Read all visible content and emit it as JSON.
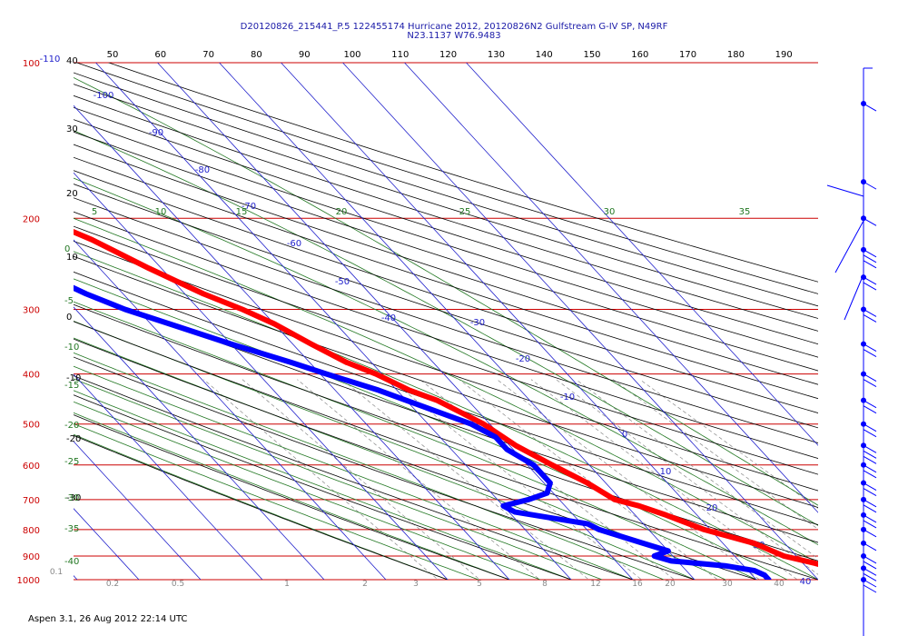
{
  "header": {
    "title_line1": "D20120826_215441_P.5 122455174 Hurricane 2012, 20120826N2 Gulfstream G-IV SP, N49RF",
    "title_line2": "N23.1137 W76.9483"
  },
  "footer": {
    "text": "Aspen 3.1, 26 Aug 2012  22:14 UTC"
  },
  "colors": {
    "isobar": "#cc0000",
    "isotherm": "#2222cc",
    "dry_adiabat": "#000000",
    "moist_adiabat": "#227722",
    "mixing_ratio": "#888888",
    "temperature": "#ff0000",
    "dewpoint": "#0000ff",
    "wind": "#0000ff"
  },
  "chart_data": {
    "type": "skew-t log-p",
    "x_tick_labels": [
      "50",
      "60",
      "70",
      "80",
      "90",
      "100",
      "110",
      "120",
      "130",
      "140",
      "150",
      "160",
      "170",
      "180",
      "190"
    ],
    "pressure_levels": [
      "100",
      "200",
      "300",
      "400",
      "500",
      "600",
      "700",
      "800",
      "900",
      "1000"
    ],
    "isotherm_labels": [
      "-110",
      "-100",
      "-90",
      "-80",
      "-70",
      "-60",
      "-50",
      "-40",
      "-30",
      "-20",
      "-10",
      "0",
      "10",
      "20",
      "30",
      "40"
    ],
    "dry_adiabat_labels": [
      "40",
      "30",
      "20",
      "10",
      "0",
      "-10",
      "-20",
      "-30"
    ],
    "moist_adiabat_labels": [
      "5",
      "10",
      "15",
      "20",
      "25",
      "30",
      "35",
      "0",
      "-5",
      "-10",
      "-15",
      "-20",
      "-25",
      "-30",
      "-35",
      "-40"
    ],
    "mixing_ratio_labels": [
      "0.1",
      "0.2",
      "0.5",
      "1",
      "2",
      "3",
      "5",
      "8",
      "12",
      "16",
      "20",
      "30",
      "40"
    ],
    "temperature": {
      "pressure": [
        178,
        185,
        200,
        220,
        250,
        280,
        300,
        320,
        350,
        380,
        400,
        430,
        450,
        500,
        550,
        600,
        650,
        700,
        720,
        750,
        800,
        850,
        900,
        930,
        960,
        1000
      ],
      "values": [
        -56,
        -55,
        -52,
        -47,
        -42,
        -37,
        -33,
        -30,
        -27,
        -24,
        -21,
        -18,
        -15,
        -11,
        -9,
        -6,
        -3,
        -1,
        2,
        5,
        9,
        15,
        18,
        22,
        25,
        27
      ]
    },
    "temperature_top_point": {
      "pressure": 166,
      "value": -61
    },
    "dewpoint": {
      "pressure": [
        197,
        210,
        230,
        250,
        280,
        300,
        320,
        350,
        380,
        400,
        430,
        450,
        500,
        530,
        560,
        600,
        650,
        680,
        700,
        720,
        740,
        780,
        800,
        850,
        880,
        900,
        920,
        940,
        960,
        980,
        1000
      ],
      "values": [
        -70,
        -67,
        -64,
        -61,
        -56,
        -52,
        -47,
        -40,
        -33,
        -29,
        -23,
        -20,
        -13,
        -11,
        -11,
        -9,
        -9,
        -11,
        -15,
        -20,
        -19,
        -9,
        -8,
        -3,
        0,
        -3,
        -1,
        7,
        11,
        12,
        12
      ]
    },
    "wind_barbs": {
      "pressure": [
        120,
        170,
        200,
        230,
        260,
        300,
        350,
        400,
        450,
        500,
        550,
        600,
        650,
        700,
        750,
        800,
        850,
        900,
        950,
        1000
      ],
      "speed_kt": [
        5,
        10,
        10,
        25,
        20,
        15,
        15,
        15,
        20,
        20,
        25,
        20,
        20,
        15,
        15,
        10,
        10,
        15,
        15,
        20
      ]
    }
  }
}
